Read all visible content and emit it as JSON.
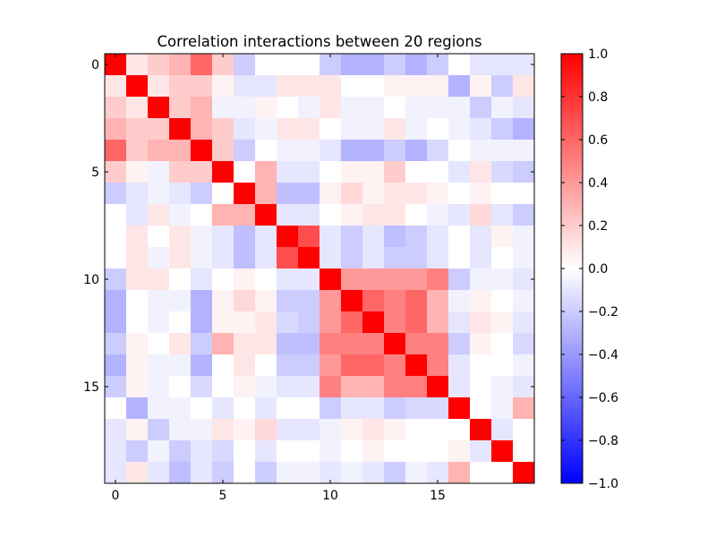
{
  "chart_data": {
    "type": "heatmap",
    "title": "Correlation interactions between 20 regions",
    "xlabel": "",
    "ylabel": "",
    "size": 20,
    "x_ticks": [
      0,
      5,
      10,
      15
    ],
    "y_ticks": [
      0,
      5,
      10,
      15
    ],
    "colorbar": {
      "vmin": -1.0,
      "vmax": 1.0,
      "ticks": [
        1.0,
        0.8,
        0.6,
        0.4,
        0.2,
        0.0,
        -0.2,
        -0.4,
        -0.6,
        -0.8,
        -1.0
      ],
      "tick_labels": [
        "1.0",
        "0.8",
        "0.6",
        "0.4",
        "0.2",
        "0.0",
        "−0.2",
        "−0.4",
        "−0.6",
        "−0.8",
        "−1.0"
      ],
      "colors": [
        "#0000ff",
        "#ffffff",
        "#ff0000"
      ]
    },
    "matrix": [
      [
        1,
        0.1,
        0.2,
        0.3,
        0.6,
        0.2,
        -0.2,
        0,
        0,
        0,
        -0.2,
        -0.3,
        -0.3,
        -0.2,
        -0.3,
        -0.2,
        0,
        -0.1,
        -0.1,
        -0.1
      ],
      [
        0.1,
        1,
        0.1,
        0.2,
        0.2,
        0.05,
        -0.1,
        -0.1,
        0.1,
        0.1,
        0.1,
        0,
        0,
        0.05,
        0.05,
        0.05,
        -0.3,
        0.05,
        -0.2,
        0.1
      ],
      [
        0.2,
        0.1,
        1,
        0.2,
        0.3,
        -0.05,
        -0.05,
        0.05,
        0,
        -0.05,
        0.1,
        -0.05,
        -0.05,
        0,
        -0.05,
        -0.05,
        -0.05,
        -0.2,
        -0.05,
        -0.1
      ],
      [
        0.3,
        0.2,
        0.2,
        1,
        0.3,
        0.2,
        -0.1,
        -0.05,
        0.1,
        0.1,
        0,
        -0.05,
        -0.05,
        0.1,
        -0.05,
        0,
        -0.05,
        -0.1,
        -0.2,
        -0.3
      ],
      [
        0.6,
        0.2,
        0.3,
        0.3,
        1,
        0.2,
        -0.2,
        0,
        -0.05,
        -0.05,
        -0.1,
        -0.3,
        -0.3,
        -0.2,
        -0.3,
        -0.15,
        0,
        -0.05,
        -0.05,
        -0.05
      ],
      [
        0.2,
        0.05,
        -0.05,
        0.2,
        0.2,
        1,
        0,
        0.3,
        -0.1,
        -0.1,
        0,
        0.05,
        0.05,
        0.2,
        0,
        0,
        -0.1,
        0.1,
        -0.15,
        -0.2
      ],
      [
        -0.2,
        -0.1,
        -0.05,
        -0.1,
        -0.2,
        0,
        1,
        0.3,
        -0.25,
        -0.25,
        0.05,
        0.15,
        0.05,
        0.1,
        0.1,
        0.05,
        0,
        0.05,
        0,
        0
      ],
      [
        0,
        -0.1,
        0.1,
        -0.05,
        0,
        0.3,
        0.3,
        1,
        -0.1,
        -0.1,
        0,
        0.05,
        0.1,
        0.1,
        0,
        -0.05,
        -0.1,
        0.15,
        -0.1,
        -0.2
      ],
      [
        0,
        0.1,
        0,
        0.1,
        -0.05,
        -0.1,
        -0.25,
        -0.1,
        1,
        0.7,
        -0.1,
        -0.2,
        -0.1,
        -0.25,
        -0.2,
        -0.1,
        0,
        -0.1,
        0.05,
        -0.05
      ],
      [
        0,
        0.1,
        -0.05,
        0.1,
        -0.05,
        -0.1,
        -0.25,
        -0.1,
        0.7,
        1,
        -0.1,
        -0.2,
        -0.1,
        -0.2,
        -0.2,
        -0.1,
        0,
        -0.1,
        0,
        -0.05
      ],
      [
        -0.2,
        0.1,
        0.1,
        0,
        -0.1,
        0,
        0.05,
        0,
        -0.1,
        -0.1,
        1,
        0.4,
        0.4,
        0.4,
        0.4,
        0.5,
        -0.2,
        -0.05,
        -0.05,
        -0.1
      ],
      [
        -0.3,
        0,
        -0.05,
        -0.05,
        -0.3,
        0.05,
        0.15,
        0.05,
        -0.2,
        -0.2,
        0.4,
        1,
        0.6,
        0.5,
        0.6,
        0.3,
        -0.05,
        0.05,
        0,
        -0.05
      ],
      [
        -0.3,
        0,
        -0.05,
        0,
        -0.3,
        0.05,
        0.05,
        0.1,
        -0.15,
        -0.2,
        0.4,
        0.6,
        1,
        0.5,
        0.6,
        0.3,
        -0.1,
        0.1,
        0.05,
        -0.1
      ],
      [
        -0.2,
        0.05,
        0,
        0.1,
        -0.2,
        0.3,
        0.1,
        0.1,
        -0.25,
        -0.25,
        0.5,
        0.5,
        0.5,
        1,
        0.5,
        0.5,
        -0.2,
        0.05,
        0,
        -0.15
      ],
      [
        -0.3,
        0.05,
        -0.05,
        -0.05,
        -0.3,
        0,
        0.1,
        0,
        -0.2,
        -0.2,
        0.4,
        0.6,
        0.6,
        0.5,
        1,
        0.5,
        -0.1,
        0,
        0,
        -0.05
      ],
      [
        -0.2,
        0.05,
        -0.05,
        0,
        -0.15,
        0,
        0.05,
        -0.05,
        -0.1,
        -0.1,
        0.5,
        0.3,
        0.3,
        0.5,
        0.5,
        1,
        -0.1,
        0,
        -0.05,
        -0.1
      ],
      [
        0,
        -0.3,
        -0.05,
        -0.05,
        0,
        -0.1,
        0,
        -0.1,
        0,
        0,
        -0.2,
        -0.1,
        -0.1,
        -0.2,
        -0.15,
        -0.15,
        1,
        0,
        -0.05,
        0.3
      ],
      [
        -0.1,
        0.05,
        -0.2,
        -0.05,
        -0.05,
        0.1,
        0.05,
        0.15,
        -0.1,
        -0.1,
        -0.05,
        0.05,
        0.1,
        0.05,
        0,
        0,
        0,
        1,
        -0.1,
        0
      ],
      [
        -0.1,
        -0.2,
        -0.05,
        -0.2,
        -0.1,
        -0.15,
        0,
        -0.1,
        0,
        0,
        -0.05,
        0,
        0.05,
        0,
        0,
        0,
        0.05,
        -0.1,
        1,
        0
      ],
      [
        -0.1,
        0.1,
        -0.1,
        -0.25,
        -0.1,
        -0.2,
        0,
        -0.2,
        -0.05,
        -0.05,
        -0.1,
        -0.05,
        -0.1,
        -0.2,
        -0.05,
        -0.1,
        0.3,
        0,
        0,
        1
      ]
    ]
  }
}
